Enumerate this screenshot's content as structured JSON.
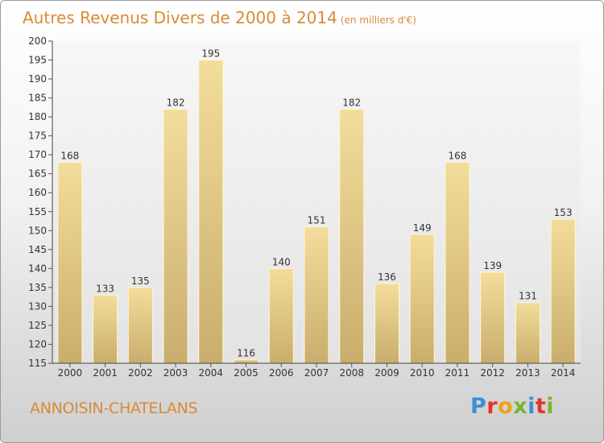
{
  "header": {
    "title": "Autres Revenus Divers de 2000 à 2014",
    "subtitle": "(en milliers d'€)"
  },
  "footer": {
    "town": "ANNOISIN-CHATELANS",
    "logo": "Proxiti"
  },
  "colors": {
    "accent": "#d98a35",
    "bar_top": "#f3dd9a",
    "bar_bottom": "#c9ad6c",
    "logo_letters": [
      "#3a8fd6",
      "#e2342a",
      "#f0a11e",
      "#7ab52e",
      "#3a8fd6",
      "#e2342a",
      "#7ab52e"
    ]
  },
  "chart_data": {
    "type": "bar",
    "title": "Autres Revenus Divers de 2000 à 2014",
    "subtitle": "(en milliers d'€)",
    "categories": [
      "2000",
      "2001",
      "2002",
      "2003",
      "2004",
      "2005",
      "2006",
      "2007",
      "2008",
      "2009",
      "2010",
      "2011",
      "2012",
      "2013",
      "2014"
    ],
    "values": [
      168,
      133,
      135,
      182,
      195,
      116,
      140,
      151,
      182,
      136,
      149,
      168,
      139,
      131,
      153
    ],
    "ylim": [
      115,
      200
    ],
    "yticks": [
      115,
      120,
      125,
      130,
      135,
      140,
      145,
      150,
      155,
      160,
      165,
      170,
      175,
      180,
      185,
      190,
      195,
      200
    ],
    "grid": false,
    "data_labels": true
  }
}
